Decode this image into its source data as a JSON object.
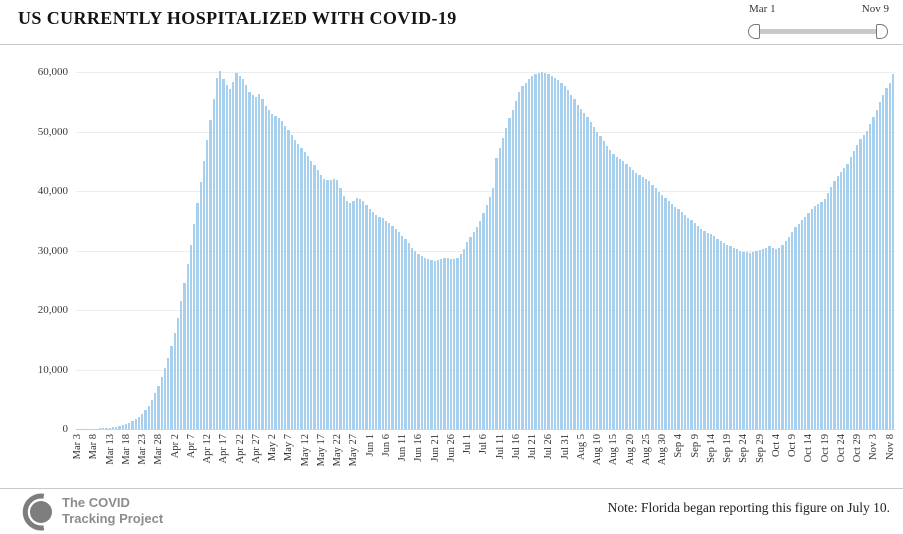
{
  "header": {
    "title": "US CURRENTLY HOSPITALIZED WITH COVID-19"
  },
  "slider": {
    "start_label": "Mar 1",
    "end_label": "Nov 9"
  },
  "chart_data": {
    "type": "bar",
    "title": "US CURRENTLY HOSPITALIZED WITH COVID-19",
    "bar_color": "#a7d0ee",
    "x_start": "Mar 3",
    "x_end": "Nov 9",
    "interval_days": 1,
    "ylim": [
      0,
      60000
    ],
    "grid": true,
    "y_tick_values": [
      0,
      10000,
      20000,
      30000,
      40000,
      50000,
      60000
    ],
    "y_tick_labels": [
      "0",
      "10,000",
      "20,000",
      "30,000",
      "40,000",
      "50,000",
      "60,000"
    ],
    "x_tick_labels": [
      "Mar 3",
      "Mar 8",
      "Mar 13",
      "Mar 18",
      "Mar 23",
      "Mar 28",
      "Apr 2",
      "Apr 7",
      "Apr 12",
      "Apr 17",
      "Apr 22",
      "Apr 27",
      "May 2",
      "May 7",
      "May 12",
      "May 17",
      "May 22",
      "May 27",
      "Jun 1",
      "Jun 6",
      "Jun 11",
      "Jun 16",
      "Jun 21",
      "Jun 26",
      "Jul 1",
      "Jul 6",
      "Jul 11",
      "Jul 16",
      "Jul 21",
      "Jul 26",
      "Jul 31",
      "Aug 5",
      "Aug 10",
      "Aug 15",
      "Aug 20",
      "Aug 25",
      "Aug 30",
      "Sep 4",
      "Sep 9",
      "Sep 14",
      "Sep 19",
      "Sep 24",
      "Sep 29",
      "Oct 4",
      "Oct 9",
      "Oct 14",
      "Oct 19",
      "Oct 24",
      "Oct 29",
      "Nov 3",
      "Nov 8"
    ],
    "values": [
      10,
      15,
      20,
      30,
      40,
      60,
      80,
      110,
      150,
      200,
      260,
      330,
      410,
      510,
      640,
      800,
      1000,
      1300,
      1650,
      2050,
      2550,
      3150,
      3900,
      4800,
      6000,
      7300,
      8800,
      10300,
      12000,
      14000,
      16200,
      18700,
      21500,
      24500,
      27700,
      31000,
      34500,
      38000,
      41500,
      45000,
      48500,
      52000,
      55500,
      59000,
      60100,
      58900,
      57800,
      57200,
      58300,
      59800,
      59300,
      58900,
      57900,
      56700,
      56200,
      55800,
      56300,
      55400,
      54300,
      53600,
      53000,
      52600,
      52300,
      51700,
      50900,
      50200,
      49400,
      48600,
      47900,
      47300,
      46600,
      45900,
      45100,
      44300,
      43500,
      42700,
      42100,
      41800,
      41900,
      42000,
      41800,
      40500,
      39200,
      38300,
      38000,
      38400,
      38800,
      38700,
      38400,
      37600,
      36900,
      36400,
      36000,
      35700,
      35400,
      35000,
      34600,
      34100,
      33600,
      33100,
      32500,
      31900,
      31200,
      30500,
      29900,
      29400,
      29000,
      28700,
      28500,
      28400,
      28300,
      28400,
      28600,
      28700,
      28700,
      28600,
      28500,
      28800,
      29400,
      30300,
      31500,
      32300,
      33200,
      34000,
      35000,
      36300,
      37600,
      39000,
      40500,
      45500,
      47200,
      48900,
      50600,
      52200,
      53700,
      55200,
      56600,
      57600,
      58200,
      58800,
      59300,
      59600,
      59900,
      60000,
      59800,
      59600,
      59300,
      59000,
      58600,
      58100,
      57600,
      57000,
      56200,
      55400,
      54500,
      53800,
      53200,
      52400,
      51600,
      50800,
      50000,
      49200,
      48400,
      47600,
      46900,
      46300,
      45800,
      45400,
      45000,
      44600,
      44100,
      43600,
      43100,
      42700,
      42400,
      42100,
      41700,
      41100,
      40500,
      39900,
      39300,
      38800,
      38400,
      37900,
      37400,
      36900,
      36400,
      35900,
      35500,
      35100,
      34600,
      34100,
      33700,
      33300,
      33000,
      32700,
      32400,
      32000,
      31600,
      31300,
      31000,
      30800,
      30500,
      30200,
      30000,
      29800,
      29700,
      29600,
      29700,
      29900,
      30100,
      30300,
      30500,
      30700,
      30500,
      30300,
      30500,
      31000,
      31600,
      32300,
      33100,
      33900,
      34500,
      35100,
      35700,
      36300,
      36900,
      37500,
      37900,
      38200,
      38700,
      39600,
      40700,
      41700,
      42500,
      43200,
      43800,
      44600,
      45700,
      46800,
      47800,
      48700,
      49400,
      50100,
      51200,
      52400,
      53700,
      55000,
      56200,
      57300,
      58100,
      59700
    ]
  },
  "footer": {
    "logo_line1": "The COVID",
    "logo_line2": "Tracking Project",
    "note": "Note: Florida began reporting this figure on July 10."
  }
}
